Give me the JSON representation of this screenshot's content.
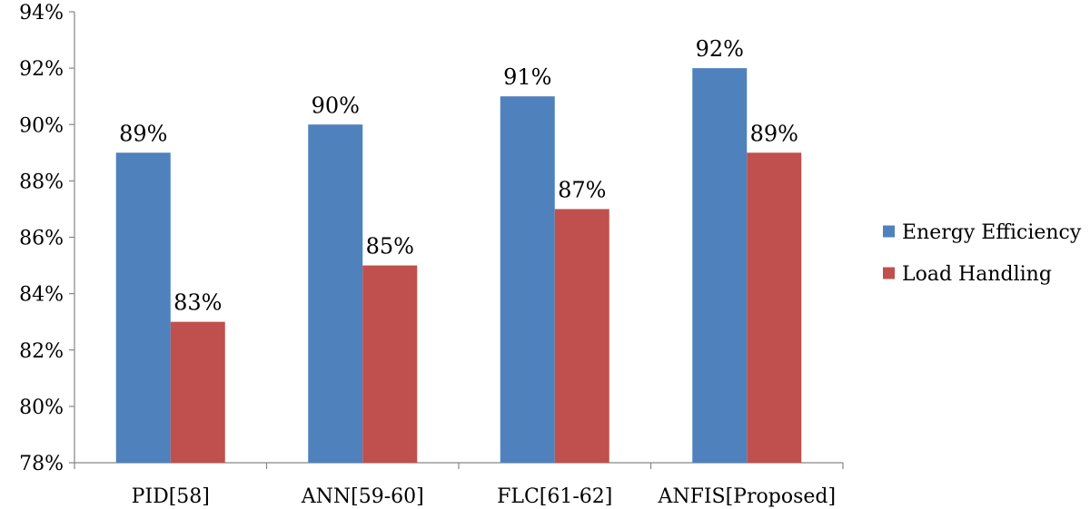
{
  "chart_data": {
    "type": "bar",
    "categories": [
      "PID[58]",
      "ANN[59-60]",
      "FLC[61-62]",
      "ANFIS[Proposed]"
    ],
    "series": [
      {
        "name": "Energy Efficiency",
        "color": "#4F81BD",
        "values": [
          89,
          90,
          91,
          92
        ],
        "labels": [
          "89%",
          "90%",
          "91%",
          "92%"
        ]
      },
      {
        "name": "Load Handling",
        "color": "#C0504D",
        "values": [
          83,
          85,
          87,
          89
        ],
        "labels": [
          "83%",
          "85%",
          "87%",
          "89%"
        ]
      }
    ],
    "ylim": [
      78,
      94
    ],
    "yticks": [
      78,
      80,
      82,
      84,
      86,
      88,
      90,
      92,
      94
    ],
    "ytick_labels": [
      "78%",
      "80%",
      "82%",
      "84%",
      "86%",
      "88%",
      "90%",
      "92%",
      "94%"
    ],
    "grid": false,
    "legend_position": "right",
    "title": "",
    "xlabel": "",
    "ylabel": ""
  }
}
